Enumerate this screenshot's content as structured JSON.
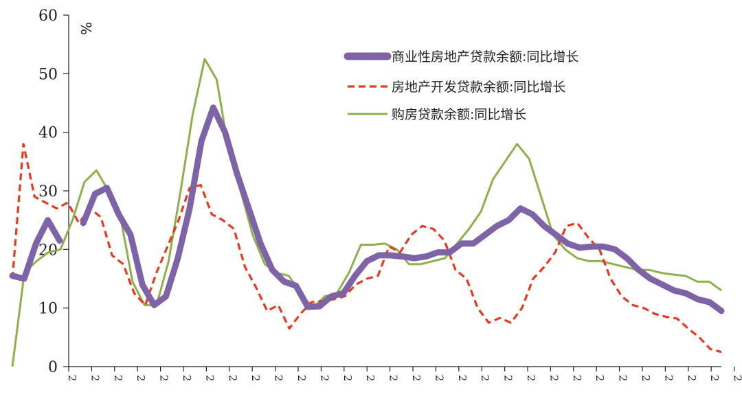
{
  "chart_data": {
    "type": "line",
    "title": "",
    "xlabel": "",
    "ylabel": "%",
    "ylim": [
      0,
      60
    ],
    "yticks": [
      0,
      10,
      20,
      30,
      40,
      50,
      60
    ],
    "x_tick_labels": [
      "2",
      "2",
      "2",
      "2",
      "2",
      "2",
      "2",
      "2",
      "2",
      "2",
      "2",
      "2",
      "2",
      "2",
      "2",
      "2",
      "2",
      "2",
      "2",
      "2",
      "2",
      "2",
      "2",
      "2",
      "2",
      "2",
      "2",
      "2",
      "2",
      "2"
    ],
    "series": [
      {
        "name": "商业性房地产贷款余额:同比增长",
        "color": "#7e64a7",
        "style": "solid-thick",
        "values": [
          15.5,
          15,
          21,
          25,
          21.5,
          null,
          24.5,
          29.5,
          30.5,
          26,
          22.5,
          14,
          10.5,
          12,
          18.5,
          27,
          38.5,
          44.2,
          40,
          33,
          27,
          21,
          16.5,
          14.5,
          13.8,
          10.2,
          10.3,
          12,
          12.5,
          15.5,
          18,
          19,
          19,
          18.8,
          18.5,
          18.8,
          19.5,
          19.5,
          21,
          21,
          22.5,
          24,
          25,
          27,
          26,
          24,
          22.5,
          21,
          20.3,
          20.5,
          20.5,
          20,
          18.5,
          16.5,
          15,
          14,
          13,
          12.5,
          11.5,
          11,
          9.5
        ]
      },
      {
        "name": "房地产开发贷款余额:同比增长",
        "color": "#e63a1e",
        "style": "dashed",
        "values": [
          15,
          38,
          29,
          28,
          27,
          28,
          24.5,
          27,
          25.5,
          19,
          17.5,
          12.5,
          10.5,
          16,
          20.5,
          25,
          30.5,
          31,
          26,
          25,
          23.5,
          17,
          13.5,
          9.5,
          10.5,
          6.5,
          9,
          11,
          11.2,
          11.5,
          12,
          14,
          15,
          15.5,
          20.5,
          19.5,
          22.5,
          24,
          23.5,
          21.5,
          16.5,
          15,
          10,
          7.5,
          8.3,
          7.5,
          10,
          15,
          17,
          19.5,
          24,
          24.5,
          22,
          20,
          15,
          12,
          10.5,
          10,
          9,
          8.5,
          8.2,
          6.5,
          5,
          3,
          2.5
        ]
      },
      {
        "name": "购房贷款余额:同比增长",
        "color": "#8eb04c",
        "style": "solid",
        "values": [
          0,
          16,
          18,
          19.5,
          20,
          25,
          31.5,
          33.5,
          30,
          25.5,
          14.5,
          10.5,
          10.5,
          18,
          30,
          43,
          52.5,
          49,
          37,
          30,
          22.5,
          17.5,
          16,
          15.5,
          12.5,
          10,
          12,
          12.5,
          16,
          20.8,
          20.8,
          21,
          20,
          17.5,
          17.5,
          18,
          18.5,
          21,
          23.5,
          26.5,
          32,
          35,
          38,
          35.5,
          29,
          22.5,
          20,
          18.5,
          18,
          18,
          17.5,
          17,
          16.5,
          16.5,
          16,
          15.7,
          15.5,
          14.5,
          14.5,
          13
        ]
      }
    ],
    "legend": {
      "position": "top-right",
      "entries": [
        "商业性房地产贷款余额:同比增长",
        "房地产开发贷款余额:同比增长",
        "购房贷款余额:同比增长"
      ]
    }
  }
}
